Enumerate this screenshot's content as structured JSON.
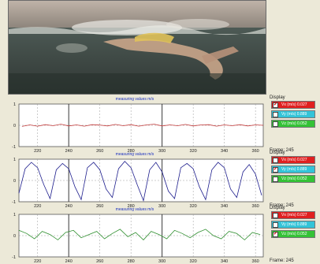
{
  "colors": {
    "vx": "#c23a3a",
    "vy": "#1c1c8c",
    "vz": "#2f8f2f",
    "title": "#1a2fbf"
  },
  "video": {
    "description_icon": "swimmer-video-frame"
  },
  "panels": [
    {
      "title": "measuring values m/s",
      "y_ticks": [
        "1",
        "0",
        "-1"
      ],
      "x_ticks": [
        "220",
        "240",
        "260",
        "280",
        "300",
        "320",
        "340",
        "360"
      ],
      "display_label": "Display",
      "checks": [
        {
          "label": "Vx (m/s)  0.027",
          "checked": true,
          "color": "red"
        },
        {
          "label": "Vy (m/s)  0.889",
          "checked": false,
          "color": "cyan"
        },
        {
          "label": "Vz (m/s)  0.052",
          "checked": false,
          "color": "green"
        }
      ],
      "frame_label": "Frame:   245"
    },
    {
      "title": "measuring values m/s",
      "y_ticks": [
        "1",
        "0",
        "-1"
      ],
      "x_ticks": [
        "220",
        "240",
        "260",
        "280",
        "300",
        "320",
        "340",
        "360"
      ],
      "display_label": "Display",
      "checks": [
        {
          "label": "Vx (m/s)  0.027",
          "checked": false,
          "color": "red"
        },
        {
          "label": "Vy (m/s)  0.889",
          "checked": true,
          "color": "cyan"
        },
        {
          "label": "Vz (m/s)  0.052",
          "checked": false,
          "color": "green"
        }
      ],
      "frame_label": "Frame:   245"
    },
    {
      "title": "measuring values m/s",
      "y_ticks": [
        "1",
        "0",
        "-1"
      ],
      "x_ticks": [
        "220",
        "240",
        "260",
        "280",
        "300",
        "320",
        "340",
        "360"
      ],
      "display_label": "Display",
      "checks": [
        {
          "label": "Vx (m/s)  0.027",
          "checked": false,
          "color": "red"
        },
        {
          "label": "Vy (m/s)  0.889",
          "checked": false,
          "color": "cyan"
        },
        {
          "label": "Vz (m/s)  0.052",
          "checked": true,
          "color": "green"
        }
      ],
      "frame_label": "Frame:   245"
    }
  ],
  "chart_data": [
    {
      "type": "line",
      "title": "measuring values m/s",
      "xlim": [
        208,
        365
      ],
      "ylim": [
        -1,
        1
      ],
      "series": [
        {
          "name": "Vx (m/s)",
          "x": [
            210,
            215,
            220,
            225,
            230,
            235,
            240,
            245,
            250,
            255,
            260,
            265,
            270,
            275,
            280,
            285,
            290,
            295,
            300,
            305,
            310,
            315,
            320,
            325,
            330,
            335,
            340,
            345,
            350,
            355,
            360,
            365
          ],
          "values": [
            -0.05,
            0.02,
            -0.04,
            0.03,
            -0.02,
            0.05,
            -0.03,
            0.02,
            -0.04,
            0.03,
            0.01,
            -0.03,
            0.04,
            -0.02,
            0.03,
            -0.04,
            0.02,
            0.05,
            -0.03,
            0.02,
            -0.02,
            0.04,
            -0.03,
            0.02,
            0.03,
            -0.04,
            0.02,
            -0.02,
            0.03,
            -0.03,
            0.02,
            0.0
          ]
        }
      ]
    },
    {
      "type": "line",
      "title": "measuring values m/s",
      "xlim": [
        208,
        365
      ],
      "ylim": [
        -1,
        1
      ],
      "series": [
        {
          "name": "Vy (m/s)",
          "x": [
            208,
            212,
            216,
            220,
            224,
            228,
            232,
            236,
            240,
            244,
            248,
            252,
            256,
            260,
            264,
            268,
            272,
            276,
            280,
            284,
            288,
            292,
            296,
            300,
            304,
            308,
            312,
            316,
            320,
            324,
            328,
            332,
            336,
            340,
            344,
            348,
            352,
            356,
            360,
            364
          ],
          "values": [
            -0.6,
            0.55,
            0.85,
            0.6,
            -0.2,
            -0.85,
            0.5,
            0.8,
            0.55,
            -0.3,
            -0.9,
            0.6,
            0.85,
            0.5,
            -0.4,
            -0.8,
            0.55,
            0.9,
            0.6,
            -0.2,
            -0.95,
            0.5,
            0.85,
            0.4,
            -0.5,
            -0.85,
            0.6,
            0.8,
            0.55,
            -0.3,
            -0.9,
            0.5,
            0.85,
            0.6,
            -0.4,
            -0.8,
            0.4,
            0.75,
            0.3,
            -0.7
          ]
        }
      ]
    },
    {
      "type": "line",
      "title": "measuring values m/s",
      "xlim": [
        208,
        365
      ],
      "ylim": [
        -1,
        1
      ],
      "series": [
        {
          "name": "Vz (m/s)",
          "x": [
            208,
            213,
            218,
            223,
            228,
            233,
            238,
            243,
            248,
            253,
            258,
            263,
            268,
            273,
            278,
            283,
            288,
            293,
            298,
            303,
            308,
            313,
            318,
            323,
            328,
            333,
            338,
            343,
            348,
            353,
            358,
            363
          ],
          "values": [
            0.25,
            0.1,
            -0.15,
            0.2,
            0.05,
            -0.2,
            0.15,
            0.25,
            -0.1,
            0.05,
            0.2,
            -0.15,
            0.1,
            0.3,
            -0.05,
            0.15,
            -0.2,
            0.2,
            0.05,
            -0.15,
            0.25,
            0.1,
            -0.1,
            0.15,
            0.3,
            0.0,
            -0.15,
            0.2,
            0.1,
            -0.2,
            0.15,
            0.05
          ]
        }
      ]
    }
  ]
}
